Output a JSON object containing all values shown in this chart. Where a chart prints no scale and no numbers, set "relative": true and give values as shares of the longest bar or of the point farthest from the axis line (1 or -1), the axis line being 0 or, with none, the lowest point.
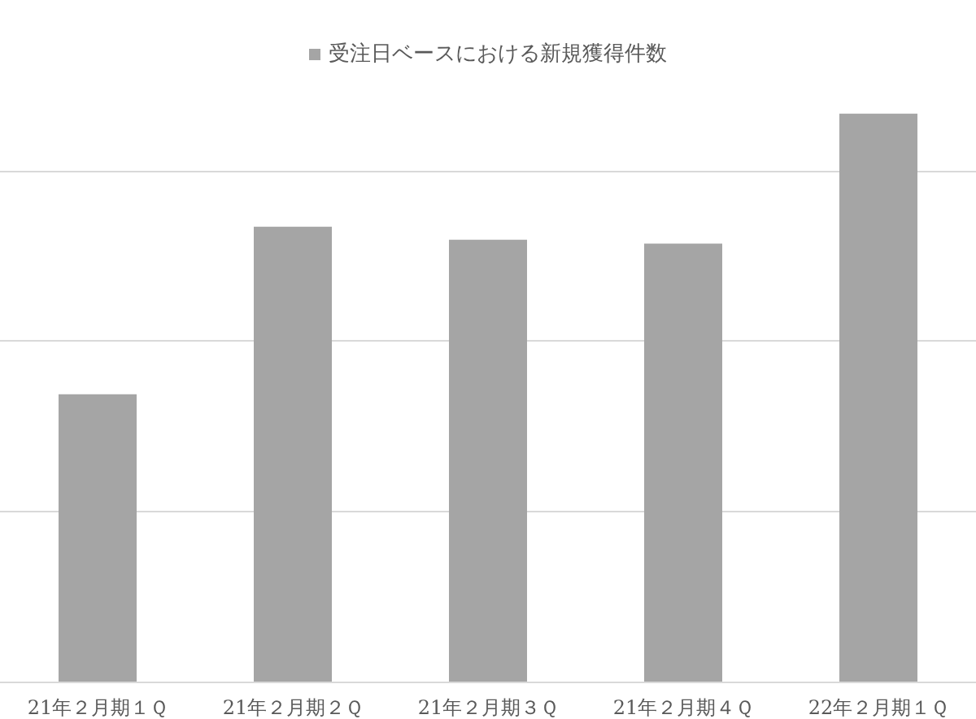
{
  "chart_data": {
    "type": "bar",
    "relative": true,
    "categories": [
      "21年２月期１Ｑ",
      "21年２月期２Ｑ",
      "21年２月期３Ｑ",
      "21年２月期４Ｑ",
      "22年２月期１Ｑ"
    ],
    "series": [
      {
        "name": "受注日ベースにおける新規獲得件数",
        "color": "#a5a5a5",
        "values": [
          0.506,
          0.801,
          0.778,
          0.771,
          1
        ]
      }
    ],
    "grid": "y",
    "legend": "top"
  }
}
